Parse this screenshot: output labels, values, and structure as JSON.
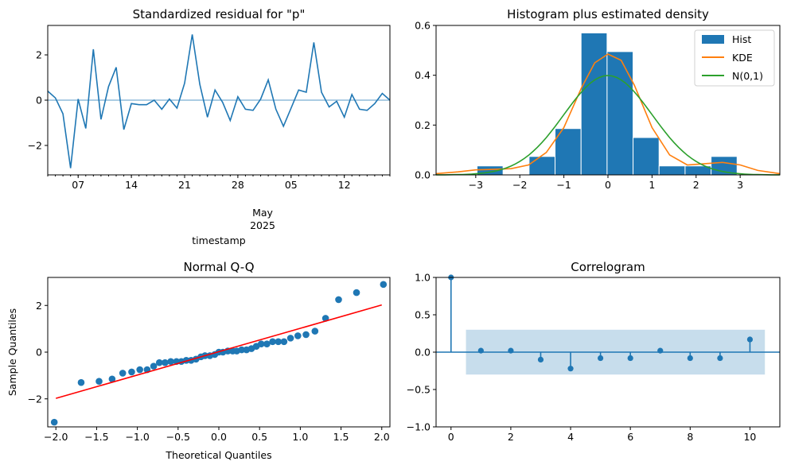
{
  "colors": {
    "blue": "#1f77b4",
    "orange": "#ff7f0e",
    "green": "#2ca02c",
    "red": "#ff0000",
    "band": "#c6dbef"
  },
  "chart_data": [
    {
      "type": "line",
      "title": "Standardized residual for \"p\"",
      "xlabel": "timestamp",
      "x_ticks": [
        "07",
        "14",
        "21",
        "28",
        "05",
        "12"
      ],
      "x_sub_label": {
        "line1": "May",
        "line2": "2025"
      },
      "y_ticks": [
        "−2",
        "0",
        "2"
      ],
      "ylim": [
        -3.3,
        3.3
      ],
      "x": [
        "2025-04-03",
        "2025-04-04",
        "2025-04-05",
        "2025-04-06",
        "2025-04-07",
        "2025-04-08",
        "2025-04-09",
        "2025-04-10",
        "2025-04-11",
        "2025-04-12",
        "2025-04-13",
        "2025-04-14",
        "2025-04-15",
        "2025-04-16",
        "2025-04-17",
        "2025-04-18",
        "2025-04-19",
        "2025-04-20",
        "2025-04-21",
        "2025-04-22",
        "2025-04-23",
        "2025-04-24",
        "2025-04-25",
        "2025-04-26",
        "2025-04-27",
        "2025-04-28",
        "2025-04-29",
        "2025-04-30",
        "2025-05-01",
        "2025-05-02",
        "2025-05-03",
        "2025-05-04",
        "2025-05-05",
        "2025-05-06",
        "2025-05-07",
        "2025-05-08",
        "2025-05-09",
        "2025-05-10",
        "2025-05-11",
        "2025-05-12",
        "2025-05-13",
        "2025-05-14",
        "2025-05-15",
        "2025-05-16",
        "2025-05-17",
        "2025-05-18"
      ],
      "values": [
        0.4,
        0.1,
        -0.6,
        -3.0,
        0.05,
        -1.25,
        2.25,
        -0.85,
        0.6,
        1.45,
        -1.3,
        -0.15,
        -0.2,
        -0.2,
        0.0,
        -0.4,
        0.05,
        -0.35,
        0.75,
        2.9,
        0.7,
        -0.75,
        0.45,
        -0.1,
        -0.9,
        0.15,
        -0.4,
        -0.45,
        0.05,
        0.9,
        -0.4,
        -1.15,
        -0.35,
        0.45,
        0.35,
        2.55,
        0.35,
        -0.3,
        -0.05,
        -0.75,
        0.25,
        -0.4,
        -0.45,
        -0.15,
        0.3,
        0.0
      ],
      "zero_line": 0
    },
    {
      "type": "bar",
      "title": "Histogram plus estimated density",
      "x_ticks": [
        "−3",
        "−2",
        "−1",
        "0",
        "1",
        "2",
        "3"
      ],
      "y_ticks": [
        "0.0",
        "0.2",
        "0.4",
        "0.6"
      ],
      "xlim": [
        -3.9,
        3.9
      ],
      "ylim": [
        0,
        0.6
      ],
      "legend": [
        "Hist",
        "KDE",
        "N(0,1)"
      ],
      "legend_position": "top-right",
      "bins": [
        -2.97,
        -2.38,
        -1.79,
        -1.2,
        -0.61,
        -0.02,
        0.57,
        1.16,
        1.75,
        2.34,
        2.93
      ],
      "hist_values": [
        0.036,
        0.0,
        0.074,
        0.186,
        0.57,
        0.495,
        0.15,
        0.036,
        0.036,
        0.074
      ],
      "kde_x": [
        -3.9,
        -3.4,
        -3.0,
        -2.6,
        -2.2,
        -1.8,
        -1.4,
        -1.0,
        -0.6,
        -0.3,
        0.0,
        0.3,
        0.6,
        1.0,
        1.4,
        1.8,
        2.2,
        2.6,
        3.0,
        3.4,
        3.9
      ],
      "kde_y": [
        0.005,
        0.012,
        0.02,
        0.022,
        0.025,
        0.04,
        0.09,
        0.19,
        0.35,
        0.45,
        0.485,
        0.46,
        0.36,
        0.19,
        0.08,
        0.04,
        0.045,
        0.05,
        0.04,
        0.018,
        0.005
      ]
    },
    {
      "type": "scatter",
      "title": "Normal Q-Q",
      "xlabel": "Theoretical Quantiles",
      "ylabel": "Sample Quantiles",
      "x_ticks": [
        "−2.0",
        "−1.5",
        "−1.0",
        "−0.5",
        "0.0",
        "0.5",
        "1.0",
        "1.5",
        "2.0"
      ],
      "y_ticks": [
        "−2",
        "0",
        "2"
      ],
      "xlim": [
        -2.1,
        2.1
      ],
      "ylim": [
        -3.2,
        3.2
      ],
      "line": {
        "x": [
          -2.0,
          2.0
        ],
        "y": [
          -1.98,
          2.02
        ]
      },
      "x": [
        -2.02,
        -1.69,
        -1.47,
        -1.31,
        -1.18,
        -1.07,
        -0.97,
        -0.88,
        -0.8,
        -0.73,
        -0.66,
        -0.59,
        -0.52,
        -0.46,
        -0.4,
        -0.34,
        -0.28,
        -0.22,
        -0.17,
        -0.11,
        -0.05,
        0.0,
        0.05,
        0.11,
        0.17,
        0.22,
        0.28,
        0.34,
        0.4,
        0.46,
        0.52,
        0.59,
        0.66,
        0.73,
        0.8,
        0.88,
        0.97,
        1.07,
        1.18,
        1.31,
        1.47,
        1.69,
        2.02
      ],
      "y": [
        -3.0,
        -1.3,
        -1.25,
        -1.15,
        -0.9,
        -0.85,
        -0.75,
        -0.75,
        -0.6,
        -0.45,
        -0.45,
        -0.4,
        -0.4,
        -0.4,
        -0.35,
        -0.35,
        -0.3,
        -0.2,
        -0.15,
        -0.15,
        -0.1,
        0.0,
        0.0,
        0.05,
        0.05,
        0.05,
        0.1,
        0.1,
        0.15,
        0.25,
        0.35,
        0.35,
        0.45,
        0.45,
        0.45,
        0.6,
        0.7,
        0.75,
        0.9,
        1.45,
        2.25,
        2.55,
        2.9
      ]
    },
    {
      "type": "bar",
      "title": "Correlogram",
      "x_ticks": [
        "0",
        "2",
        "4",
        "6",
        "8",
        "10"
      ],
      "y_ticks": [
        "−1.0",
        "−0.5",
        "0.0",
        "0.5",
        "1.0"
      ],
      "xlim": [
        -0.5,
        11
      ],
      "ylim": [
        -1.0,
        1.0
      ],
      "lags": [
        0,
        1,
        2,
        3,
        4,
        5,
        6,
        7,
        8,
        9,
        10
      ],
      "values": [
        1.0,
        0.02,
        0.02,
        -0.1,
        -0.22,
        -0.08,
        -0.08,
        0.02,
        -0.08,
        -0.08,
        0.17
      ],
      "confidence_band": {
        "x_from": 0.5,
        "x_to": 10.5,
        "lower": -0.3,
        "upper": 0.3
      }
    }
  ]
}
